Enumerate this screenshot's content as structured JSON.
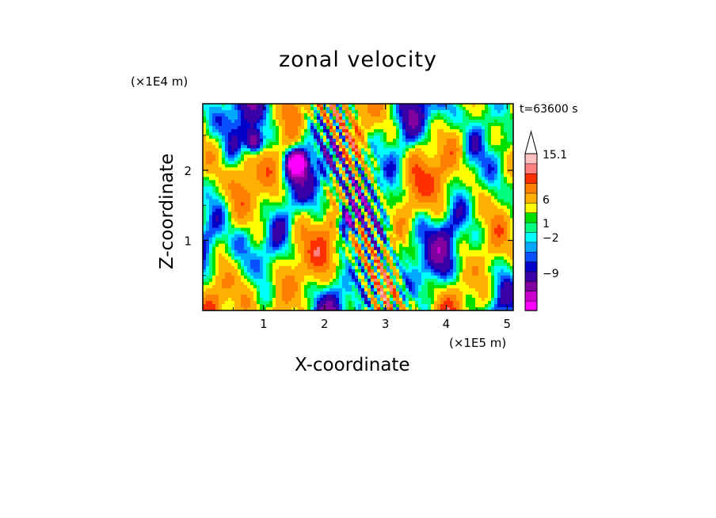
{
  "chart_data": {
    "type": "heatmap",
    "title": "zonal velocity",
    "xlabel": "X-coordinate",
    "ylabel": "Z-coordinate",
    "x_unit": "(×1E5 m)",
    "y_unit": "(×1E4 m)",
    "time_label": "t=63600 s",
    "xlim": [
      0.0,
      5.1
    ],
    "ylim": [
      0.0,
      2.95
    ],
    "x_ticks": [
      1,
      2,
      3,
      4,
      5
    ],
    "y_ticks": [
      1,
      2
    ],
    "colorbar": {
      "levels": [
        -14,
        -11.5,
        -9,
        -6.5,
        -4,
        -3,
        -2,
        -1,
        0,
        1,
        2,
        3.5,
        6,
        8.5,
        11,
        13.5,
        15.1
      ],
      "colors": [
        "#ff00ff",
        "#cc00cc",
        "#8000a0",
        "#3a00a8",
        "#0000c8",
        "#0a50ff",
        "#00a8ff",
        "#00ffff",
        "#00ff80",
        "#00e000",
        "#ffff00",
        "#ffb000",
        "#ff8000",
        "#ff3000",
        "#ff8080",
        "#ffc0c0"
      ],
      "tick_labels": [
        "15.1",
        "6",
        "1",
        "−2",
        "−9"
      ],
      "extend": "max"
    }
  }
}
